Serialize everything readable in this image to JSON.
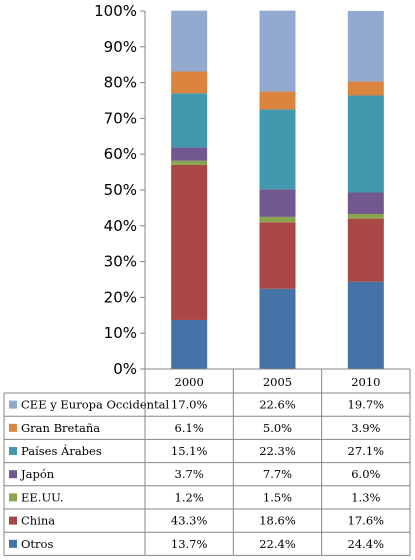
{
  "chart_data": {
    "type": "bar",
    "stacked": true,
    "percent_axis": true,
    "categories": [
      "2000",
      "2005",
      "2010"
    ],
    "y_ticks": [
      "0%",
      "10%",
      "20%",
      "30%",
      "40%",
      "50%",
      "60%",
      "70%",
      "80%",
      "90%",
      "100%"
    ],
    "ylim": [
      0,
      100
    ],
    "grid": false,
    "legend": "data-table-below",
    "series": [
      {
        "name": "Otros",
        "color": "#4572A7",
        "values": [
          13.7,
          22.4,
          24.4
        ],
        "labels": [
          "13.7%",
          "22.4%",
          "24.4%"
        ]
      },
      {
        "name": "China",
        "color": "#AA4643",
        "values": [
          43.3,
          18.6,
          17.6
        ],
        "labels": [
          "43.3%",
          "18.6%",
          "17.6%"
        ]
      },
      {
        "name": "EE.UU.",
        "color": "#89A54E",
        "values": [
          1.2,
          1.5,
          1.3
        ],
        "labels": [
          "1.2%",
          "1.5%",
          "1.3%"
        ]
      },
      {
        "name": "Japón",
        "color": "#71588F",
        "values": [
          3.7,
          7.7,
          6.0
        ],
        "labels": [
          "3.7%",
          "7.7%",
          "6.0%"
        ]
      },
      {
        "name": "Países Árabes",
        "color": "#4198AF",
        "values": [
          15.1,
          22.3,
          27.1
        ],
        "labels": [
          "15.1%",
          "22.3%",
          "27.1%"
        ]
      },
      {
        "name": "Gran Bretaña",
        "color": "#DB843D",
        "values": [
          6.1,
          5.0,
          3.9
        ],
        "labels": [
          "6.1%",
          "5.0%",
          "3.9%"
        ]
      },
      {
        "name": "CEE y Europa Occidental",
        "color": "#93A9CF",
        "values": [
          17.0,
          22.6,
          19.7
        ],
        "labels": [
          "17.0%",
          "22.6%",
          "19.7%"
        ]
      }
    ]
  }
}
